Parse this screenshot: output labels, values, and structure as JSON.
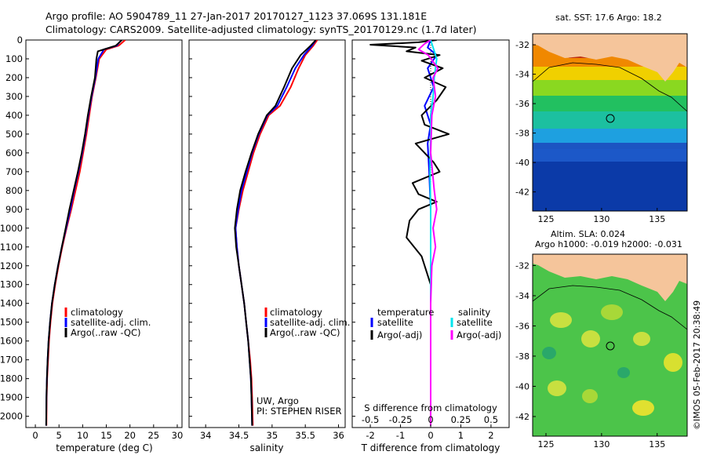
{
  "header": {
    "title_line1": "Argo profile: AO 5904789_11 27-Jan-2017 20170127_1123 37.069S 131.181E",
    "title_line2": "Climatology: CARS2009. Satellite-adjusted climatology: synTS_20170129.nc (1.7d later)"
  },
  "colors": {
    "climatology": "#ff0000",
    "satellite": "#0000ff",
    "argo": "#000000",
    "sal_satellite": "#00e5ee",
    "sal_argo": "#ff00ff"
  },
  "depth_axis": {
    "range": [
      0,
      2060
    ],
    "ticks": [
      0,
      100,
      200,
      300,
      400,
      500,
      600,
      700,
      800,
      900,
      1000,
      1100,
      1200,
      1300,
      1400,
      1500,
      1600,
      1700,
      1800,
      1900,
      2000
    ]
  },
  "legends": {
    "left": [
      "climatology",
      "satellite-adj. clim.",
      "Argo(..raw -QC)"
    ],
    "middle": [
      "climatology",
      "satellite-adj. clim.",
      "Argo(..raw -QC)"
    ],
    "diff_t_header": "temperature",
    "diff_s_header": "salinity",
    "diff_t": [
      "satellite",
      "Argo(-adj)"
    ],
    "diff_s": [
      "satellite",
      "Argo(-adj)"
    ]
  },
  "credits": {
    "line1": "UW, Argo",
    "line2": "PI: STEPHEN RISER"
  },
  "maps": {
    "sst_title": "sat. SST: 17.6 Argo: 18.2",
    "sla_title1": "Altim. SLA: 0.024",
    "sla_title2": "Argo h1000: -0.019 h2000: -0.031",
    "lat_ticks": [
      "-32",
      "-34",
      "-36",
      "-38",
      "-40",
      "-42"
    ],
    "lon_ticks": [
      "125",
      "130",
      "135"
    ],
    "lat_values": [
      -32,
      -34,
      -36,
      -38,
      -40,
      -42
    ],
    "lon_values": [
      125,
      130,
      135
    ]
  },
  "timestamp": "©IMOS 05-Feb-2017 20:38:49",
  "chart_data": [
    {
      "type": "line",
      "name": "temperature",
      "xlabel": "temperature (deg C)",
      "xlim": [
        -2,
        31
      ],
      "xticks": [
        0,
        5,
        10,
        15,
        20,
        25,
        30
      ],
      "ylim": [
        2060,
        0
      ],
      "series": [
        {
          "name": "climatology",
          "color": "#ff0000",
          "x": [
            19.0,
            17.6,
            15.0,
            13.5,
            12.8,
            12.0,
            11.4,
            10.8,
            10.1,
            9.4,
            8.5,
            7.6,
            6.6,
            5.7,
            4.9,
            4.2,
            3.6,
            3.2,
            2.9,
            2.7,
            2.5,
            2.4,
            2.35
          ],
          "y": [
            0,
            30,
            50,
            100,
            200,
            300,
            400,
            500,
            600,
            700,
            800,
            900,
            1000,
            1100,
            1200,
            1300,
            1400,
            1500,
            1600,
            1700,
            1800,
            1900,
            2050
          ]
        },
        {
          "name": "satellite-adj. clim.",
          "color": "#0000ff",
          "x": [
            18.2,
            17.2,
            14.5,
            13.3,
            12.7,
            11.9,
            11.2,
            10.6,
            9.9,
            9.1,
            8.2,
            7.4,
            6.5,
            5.6,
            4.8,
            4.1,
            3.5,
            3.1,
            2.8,
            2.6,
            2.45,
            2.35,
            2.3
          ],
          "y": [
            0,
            30,
            50,
            100,
            200,
            300,
            400,
            500,
            600,
            700,
            800,
            900,
            1000,
            1100,
            1200,
            1300,
            1400,
            1500,
            1600,
            1700,
            1800,
            1900,
            2050
          ]
        },
        {
          "name": "Argo(..raw -QC)",
          "color": "#000000",
          "x": [
            18.3,
            17.0,
            13.2,
            12.9,
            12.6,
            11.8,
            11.1,
            10.5,
            9.8,
            9.0,
            8.1,
            7.2,
            6.4,
            5.6,
            4.8,
            4.1,
            3.5,
            3.1,
            2.8,
            2.6,
            2.45,
            2.35,
            2.3
          ],
          "y": [
            0,
            30,
            60,
            100,
            200,
            300,
            400,
            500,
            600,
            700,
            800,
            900,
            1000,
            1100,
            1200,
            1300,
            1400,
            1500,
            1600,
            1700,
            1800,
            1900,
            2050
          ]
        }
      ]
    },
    {
      "type": "line",
      "name": "salinity",
      "xlabel": "salinity",
      "xlim": [
        33.75,
        36.1
      ],
      "xticks": [
        34,
        34.5,
        35,
        35.5,
        36
      ],
      "ylim": [
        2060,
        0
      ],
      "series": [
        {
          "name": "climatology",
          "color": "#ff0000",
          "x": [
            35.68,
            35.62,
            35.5,
            35.4,
            35.28,
            35.12,
            34.95,
            34.82,
            34.72,
            34.64,
            34.56,
            34.5,
            34.45,
            34.47,
            34.5,
            34.54,
            34.58,
            34.61,
            34.64,
            34.67,
            34.69,
            34.7,
            34.71
          ],
          "y": [
            0,
            30,
            80,
            150,
            250,
            350,
            400,
            500,
            600,
            700,
            800,
            900,
            1000,
            1100,
            1200,
            1300,
            1400,
            1500,
            1600,
            1700,
            1800,
            1900,
            2050
          ]
        },
        {
          "name": "satellite-adj. clim.",
          "color": "#0000ff",
          "x": [
            35.66,
            35.6,
            35.48,
            35.35,
            35.22,
            35.08,
            34.93,
            34.8,
            34.7,
            34.62,
            34.54,
            34.49,
            34.45,
            34.47,
            34.5,
            34.54,
            34.58,
            34.61,
            34.64,
            34.66,
            34.68,
            34.69,
            34.7
          ],
          "y": [
            0,
            30,
            80,
            150,
            250,
            350,
            400,
            500,
            600,
            700,
            800,
            900,
            1000,
            1100,
            1200,
            1300,
            1400,
            1500,
            1600,
            1700,
            1800,
            1900,
            2050
          ]
        },
        {
          "name": "Argo(..raw -QC)",
          "color": "#000000",
          "x": [
            35.66,
            35.58,
            35.43,
            35.3,
            35.18,
            35.05,
            34.92,
            34.79,
            34.69,
            34.6,
            34.52,
            34.47,
            34.44,
            34.46,
            34.5,
            34.54,
            34.58,
            34.61,
            34.64,
            34.66,
            34.68,
            34.69,
            34.7
          ],
          "y": [
            0,
            30,
            80,
            150,
            250,
            350,
            400,
            500,
            600,
            700,
            800,
            900,
            1000,
            1100,
            1200,
            1300,
            1400,
            1500,
            1600,
            1700,
            1800,
            1900,
            2050
          ]
        }
      ]
    },
    {
      "type": "line",
      "name": "difference from climatology",
      "xlabel": "T difference from climatology",
      "xlabel_top": "S difference from climatology",
      "xlim": [
        -2.6,
        2.6
      ],
      "xticks": [
        -2,
        -1,
        0,
        1,
        2
      ],
      "s_ticks": [
        -0.5,
        -0.25,
        0,
        0.25,
        0.5
      ],
      "s_tick_labels": [
        "-0.5",
        "-0.25",
        "0",
        "0.25",
        "0.5"
      ],
      "ylim": [
        2060,
        0
      ],
      "series": [
        {
          "name": "temperature satellite",
          "color": "#0000ff",
          "x": [
            0.0,
            -0.1,
            0.2,
            -0.1,
            0.1,
            -0.2,
            0.0,
            -0.1,
            -0.05,
            0.0,
            0.0,
            0.0,
            0.0
          ],
          "y": [
            0,
            40,
            80,
            150,
            250,
            350,
            450,
            550,
            700,
            900,
            1200,
            1600,
            2050
          ]
        },
        {
          "name": "temperature Argo(-adj)",
          "color": "#000000",
          "x": [
            0.2,
            -0.4,
            -2.0,
            -0.5,
            -0.8,
            0.3,
            -0.3,
            0.4,
            -0.2,
            0.5,
            0.2,
            -0.3,
            -0.2,
            0.6,
            -0.5,
            -0.2,
            0.1,
            0.3,
            -0.6,
            -0.4,
            0.2,
            -0.4,
            -0.7,
            -0.8,
            -0.3,
            -0.1,
            0.0,
            0.0,
            0.0
          ],
          "y": [
            0,
            12,
            25,
            40,
            60,
            80,
            110,
            150,
            200,
            250,
            320,
            400,
            450,
            500,
            550,
            600,
            650,
            700,
            760,
            820,
            860,
            900,
            960,
            1050,
            1150,
            1250,
            1300,
            1600,
            2050
          ]
        },
        {
          "name": "salinity satellite",
          "color": "#00e5ee",
          "x": [
            0.0,
            0.02,
            0.05,
            0.03,
            0.02,
            0.0,
            0.0,
            -0.005,
            0.0,
            0.0,
            0.0
          ],
          "y": [
            0,
            40,
            100,
            200,
            300,
            400,
            500,
            700,
            900,
            1300,
            2050
          ]
        },
        {
          "name": "salinity Argo(-adj)",
          "color": "#ff00ff",
          "x": [
            0.0,
            -0.05,
            -0.1,
            -0.02,
            0.06,
            0.02,
            0.04,
            0.01,
            0.0,
            0.03,
            0.05,
            0.02,
            0.04,
            0.01,
            0.0,
            0.0
          ],
          "y": [
            0,
            20,
            50,
            80,
            150,
            200,
            300,
            400,
            600,
            800,
            900,
            1000,
            1100,
            1200,
            1400,
            2050
          ]
        }
      ]
    }
  ]
}
